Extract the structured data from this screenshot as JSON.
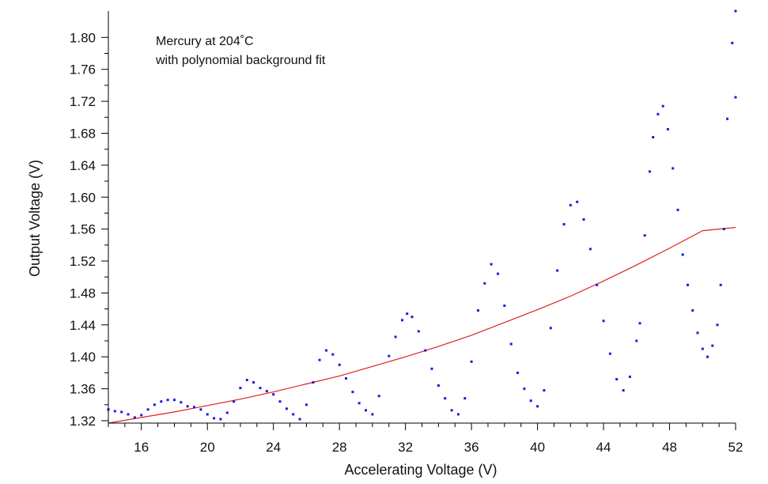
{
  "chart_data": {
    "type": "scatter",
    "xlabel": "Accelerating Voltage (V)",
    "ylabel": "Output Voltage (V)",
    "annotations": [
      "Mercury at 204˚C",
      "with polynomial background fit"
    ],
    "xlim": [
      14,
      52
    ],
    "ylim": [
      1.317,
      1.833
    ],
    "x_ticks": [
      16,
      20,
      24,
      28,
      32,
      36,
      40,
      44,
      48,
      52
    ],
    "y_ticks": [
      1.32,
      1.36,
      1.4,
      1.44,
      1.48,
      1.52,
      1.56,
      1.6,
      1.64,
      1.68,
      1.72,
      1.76,
      1.8
    ],
    "grid": false,
    "colors": {
      "data": "#1a1ae6",
      "fit": "#e02020",
      "axis": "#000000"
    },
    "series": [
      {
        "kind": "points",
        "points": [
          [
            14.0,
            1.334
          ],
          [
            14.4,
            1.332
          ],
          [
            14.8,
            1.331
          ],
          [
            15.2,
            1.328
          ],
          [
            15.6,
            1.324
          ],
          [
            16.0,
            1.327
          ],
          [
            16.4,
            1.334
          ],
          [
            16.8,
            1.34
          ],
          [
            17.2,
            1.344
          ],
          [
            17.6,
            1.346
          ],
          [
            18.0,
            1.346
          ],
          [
            18.4,
            1.343
          ],
          [
            18.8,
            1.338
          ],
          [
            19.2,
            1.337
          ],
          [
            19.6,
            1.334
          ],
          [
            20.0,
            1.328
          ],
          [
            20.4,
            1.323
          ],
          [
            20.8,
            1.322
          ],
          [
            21.2,
            1.33
          ],
          [
            21.6,
            1.344
          ],
          [
            22.0,
            1.361
          ],
          [
            22.4,
            1.371
          ],
          [
            22.8,
            1.368
          ],
          [
            23.2,
            1.361
          ],
          [
            23.6,
            1.357
          ],
          [
            24.0,
            1.353
          ],
          [
            24.4,
            1.344
          ],
          [
            24.8,
            1.335
          ],
          [
            25.2,
            1.328
          ],
          [
            25.6,
            1.322
          ],
          [
            26.0,
            1.34
          ],
          [
            26.4,
            1.368
          ],
          [
            26.8,
            1.396
          ],
          [
            27.2,
            1.408
          ],
          [
            27.6,
            1.403
          ],
          [
            28.0,
            1.39
          ],
          [
            28.4,
            1.373
          ],
          [
            28.8,
            1.356
          ],
          [
            29.2,
            1.342
          ],
          [
            29.6,
            1.333
          ],
          [
            30.0,
            1.328
          ],
          [
            30.4,
            1.351
          ],
          [
            31.0,
            1.401
          ],
          [
            31.4,
            1.425
          ],
          [
            31.8,
            1.446
          ],
          [
            32.1,
            1.454
          ],
          [
            32.4,
            1.45
          ],
          [
            32.8,
            1.432
          ],
          [
            33.2,
            1.408
          ],
          [
            33.6,
            1.385
          ],
          [
            34.0,
            1.364
          ],
          [
            34.4,
            1.348
          ],
          [
            34.8,
            1.333
          ],
          [
            35.2,
            1.328
          ],
          [
            35.6,
            1.348
          ],
          [
            36.0,
            1.394
          ],
          [
            36.4,
            1.458
          ],
          [
            36.8,
            1.492
          ],
          [
            37.2,
            1.516
          ],
          [
            37.6,
            1.504
          ],
          [
            38.0,
            1.464
          ],
          [
            38.4,
            1.416
          ],
          [
            38.8,
            1.38
          ],
          [
            39.2,
            1.36
          ],
          [
            39.6,
            1.345
          ],
          [
            40.0,
            1.338
          ],
          [
            40.4,
            1.358
          ],
          [
            40.8,
            1.436
          ],
          [
            41.2,
            1.508
          ],
          [
            41.6,
            1.566
          ],
          [
            42.0,
            1.59
          ],
          [
            42.4,
            1.594
          ],
          [
            42.8,
            1.572
          ],
          [
            43.2,
            1.535
          ],
          [
            43.6,
            1.49
          ],
          [
            44.0,
            1.445
          ],
          [
            44.4,
            1.404
          ],
          [
            44.8,
            1.372
          ],
          [
            45.2,
            1.358
          ],
          [
            45.6,
            1.375
          ],
          [
            46.0,
            1.42
          ],
          [
            46.2,
            1.442
          ],
          [
            46.5,
            1.552
          ],
          [
            46.8,
            1.632
          ],
          [
            47.0,
            1.675
          ],
          [
            47.3,
            1.704
          ],
          [
            47.6,
            1.714
          ],
          [
            47.9,
            1.685
          ],
          [
            48.2,
            1.636
          ],
          [
            48.5,
            1.584
          ],
          [
            48.8,
            1.528
          ],
          [
            49.1,
            1.49
          ],
          [
            49.4,
            1.458
          ],
          [
            49.7,
            1.43
          ],
          [
            50.0,
            1.41
          ],
          [
            50.3,
            1.4
          ],
          [
            50.6,
            1.414
          ],
          [
            50.9,
            1.44
          ],
          [
            51.1,
            1.49
          ],
          [
            51.3,
            1.56
          ],
          [
            51.5,
            1.698
          ],
          [
            51.8,
            1.793
          ],
          [
            52.0,
            1.833
          ],
          [
            52.0,
            1.725
          ]
        ]
      },
      {
        "kind": "fit",
        "points": [
          [
            14,
            1.317
          ],
          [
            16,
            1.324
          ],
          [
            18,
            1.331
          ],
          [
            20,
            1.339
          ],
          [
            22,
            1.347
          ],
          [
            24,
            1.356
          ],
          [
            26,
            1.366
          ],
          [
            28,
            1.376
          ],
          [
            30,
            1.388
          ],
          [
            32,
            1.4
          ],
          [
            34,
            1.413
          ],
          [
            36,
            1.427
          ],
          [
            38,
            1.443
          ],
          [
            40,
            1.459
          ],
          [
            42,
            1.476
          ],
          [
            44,
            1.495
          ],
          [
            46,
            1.515
          ],
          [
            48,
            1.536
          ],
          [
            50,
            1.558
          ],
          [
            52,
            1.562
          ]
        ]
      }
    ]
  }
}
